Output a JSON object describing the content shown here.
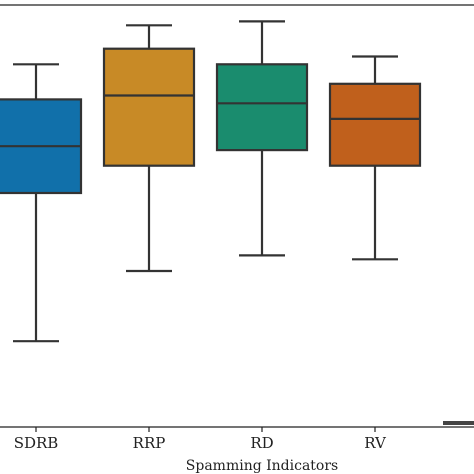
{
  "chart_data": {
    "type": "box",
    "title": "",
    "xlabel": "Spamming Indicators",
    "ylabel": "",
    "categories": [
      "SDRB",
      "RRP",
      "RD",
      "RV"
    ],
    "ylim": [
      0,
      1
    ],
    "grid": false,
    "legend": "none",
    "boxes": [
      {
        "category": "SDRB",
        "whisker_low": 0.22,
        "q1": 0.6,
        "median": 0.72,
        "q3": 0.84,
        "whisker_high": 0.93,
        "color": "#1170aa"
      },
      {
        "category": "RRP",
        "whisker_low": 0.4,
        "q1": 0.67,
        "median": 0.85,
        "q3": 0.97,
        "whisker_high": 1.03,
        "color": "#c88a26"
      },
      {
        "category": "RD",
        "whisker_low": 0.44,
        "q1": 0.71,
        "median": 0.83,
        "q3": 0.93,
        "whisker_high": 1.04,
        "color": "#1a8c6e"
      },
      {
        "category": "RV",
        "whisker_low": 0.43,
        "q1": 0.67,
        "median": 0.79,
        "q3": 0.88,
        "whisker_high": 0.95,
        "color": "#c0601c"
      }
    ]
  }
}
